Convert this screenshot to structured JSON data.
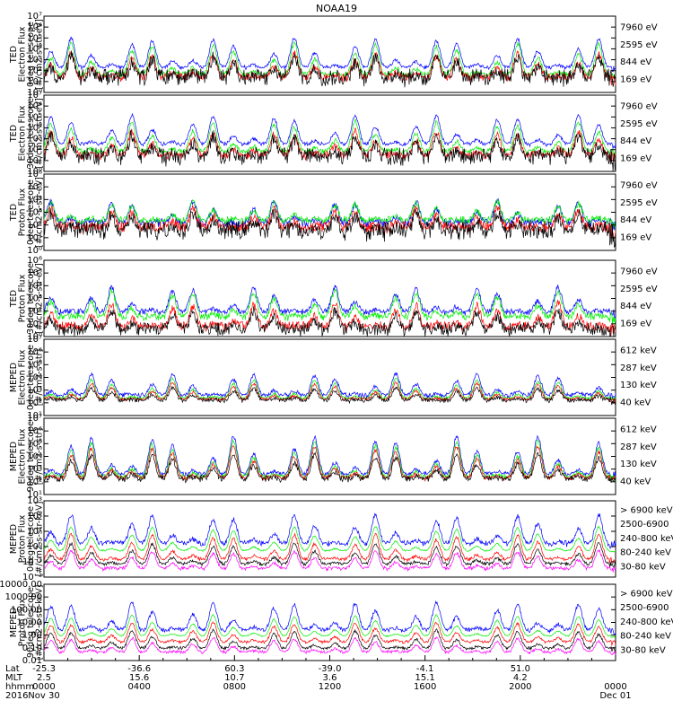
{
  "title": "NOAA19",
  "chart_data": {
    "type": "line",
    "title": "NOAA19",
    "x_axis": {
      "rows": [
        {
          "label": "Lat",
          "values": [
            "-25.3",
            "-36.6",
            "60.3",
            "-39.0",
            "-4.1",
            "51.0"
          ]
        },
        {
          "label": "MLT",
          "values": [
            "2.5",
            "15.6",
            "10.7",
            "3.6",
            "15.1",
            "4.2"
          ]
        },
        {
          "label": "hhmm",
          "values": [
            "0000",
            "0400",
            "0800",
            "1200",
            "1600",
            "2000"
          ]
        },
        {
          "label": "2016",
          "values": [
            "Nov 30",
            "",
            "",
            "",
            "",
            ""
          ]
        }
      ],
      "end_label": "Dec 01",
      "end_value": "0000"
    },
    "panels": [
      {
        "ylabel": [
          "TED",
          "Electron Flux",
          "0deg telescope",
          "[#/cm2-s-str-eV]"
        ],
        "yscale": "log",
        "ylim_exp": [
          0,
          7
        ],
        "tick_labels": [
          "10⁰",
          "10¹",
          "10²",
          "10³",
          "10⁴",
          "10⁵",
          "10⁶",
          "10⁷"
        ],
        "series": [
          {
            "name": "7960 eV",
            "color": "#000000",
            "base": 1.0,
            "peak": 3.3,
            "noise": 1.2
          },
          {
            "name": "2595 eV",
            "color": "#ff0000",
            "base": 1.2,
            "peak": 3.6,
            "noise": 0.6
          },
          {
            "name": "844 eV",
            "color": "#00ee00",
            "base": 1.5,
            "peak": 4.5,
            "noise": 0.4
          },
          {
            "name": "169 eV",
            "color": "#0000ff",
            "base": 2.2,
            "peak": 5.0,
            "noise": 0.3
          }
        ]
      },
      {
        "ylabel": [
          "TED",
          "Electron Flux",
          "30deg telescope",
          "[#/cm2-s-str-eV]"
        ],
        "yscale": "log",
        "ylim_exp": [
          0,
          7
        ],
        "tick_labels": [
          "10⁰",
          "10¹",
          "10²",
          "10³",
          "10⁴",
          "10⁵",
          "10⁶",
          "10⁷"
        ],
        "series": [
          {
            "name": "7960 eV",
            "color": "#000000",
            "base": 1.0,
            "peak": 3.3,
            "noise": 1.2
          },
          {
            "name": "2595 eV",
            "color": "#ff0000",
            "base": 1.3,
            "peak": 3.7,
            "noise": 0.6
          },
          {
            "name": "844 eV",
            "color": "#00ee00",
            "base": 1.7,
            "peak": 4.6,
            "noise": 0.4
          },
          {
            "name": "169 eV",
            "color": "#0000ff",
            "base": 2.4,
            "peak": 5.2,
            "noise": 0.3
          }
        ]
      },
      {
        "ylabel": [
          "TED",
          "Proton Flux",
          "0deg telescope",
          "[#/cm2-s-str-eV]"
        ],
        "yscale": "log",
        "ylim_exp": [
          0,
          6
        ],
        "tick_labels": [
          "10⁰",
          "10¹",
          "10²",
          "10³",
          "10⁴",
          "10⁵",
          "10⁶"
        ],
        "series": [
          {
            "name": "7960 eV",
            "color": "#000000",
            "base": 1.2,
            "peak": 3.0,
            "noise": 1.1
          },
          {
            "name": "2595 eV",
            "color": "#ff0000",
            "base": 1.6,
            "peak": 3.3,
            "noise": 0.7
          },
          {
            "name": "844 eV",
            "color": "#00ee00",
            "base": 2.2,
            "peak": 3.8,
            "noise": 0.5
          },
          {
            "name": "169 eV",
            "color": "#0000ff",
            "base": 2.0,
            "peak": 3.9,
            "noise": 0.5
          }
        ]
      },
      {
        "ylabel": [
          "TED",
          "Proton Flux",
          "30deg telescope",
          "[#/cm2-s-str-eV]"
        ],
        "yscale": "log",
        "ylim_exp": [
          0,
          6
        ],
        "tick_labels": [
          "10⁰",
          "10¹",
          "10²",
          "10³",
          "10⁴",
          "10⁵",
          "10⁶"
        ],
        "series": [
          {
            "name": "7960 eV",
            "color": "#000000",
            "base": 0.3,
            "peak": 2.0,
            "noise": 0.8
          },
          {
            "name": "2595 eV",
            "color": "#ff0000",
            "base": 0.6,
            "peak": 2.6,
            "noise": 0.6
          },
          {
            "name": "844 eV",
            "color": "#00ee00",
            "base": 1.4,
            "peak": 3.6,
            "noise": 0.5
          },
          {
            "name": "169 eV",
            "color": "#0000ff",
            "base": 1.8,
            "peak": 3.9,
            "noise": 0.4
          }
        ]
      },
      {
        "ylabel": [
          "MEPED",
          "Electron Flux",
          "0deg telescope",
          "[#/cm2-s-str]"
        ],
        "yscale": "log",
        "ylim_exp": [
          1,
          7
        ],
        "tick_labels": [
          "10¹",
          "10²",
          "10³",
          "10⁴",
          "10⁵",
          "10⁶",
          "10⁷"
        ],
        "series": [
          {
            "name": "612 keV",
            "color": "#000000",
            "base": 2.1,
            "peak": 3.2,
            "noise": 0.3
          },
          {
            "name": "287 keV",
            "color": "#ff0000",
            "base": 2.2,
            "peak": 3.6,
            "noise": 0.2
          },
          {
            "name": "130 keV",
            "color": "#00ee00",
            "base": 2.3,
            "peak": 3.9,
            "noise": 0.2
          },
          {
            "name": "40 keV",
            "color": "#0000ff",
            "base": 2.5,
            "peak": 4.3,
            "noise": 0.3
          }
        ]
      },
      {
        "ylabel": [
          "MEPED",
          "Electron Flux",
          "90deg telescope",
          "[#/cm2-s-str]"
        ],
        "yscale": "log",
        "ylim_exp": [
          1,
          7
        ],
        "tick_labels": [
          "10¹",
          "10²",
          "10³",
          "10⁴",
          "10⁵",
          "10⁶",
          "10⁷"
        ],
        "series": [
          {
            "name": "612 keV",
            "color": "#000000",
            "base": 2.1,
            "peak": 4.2,
            "noise": 0.4
          },
          {
            "name": "287 keV",
            "color": "#ff0000",
            "base": 2.2,
            "peak": 4.8,
            "noise": 0.3
          },
          {
            "name": "130 keV",
            "color": "#00ee00",
            "base": 2.3,
            "peak": 5.2,
            "noise": 0.3
          },
          {
            "name": "40 keV",
            "color": "#0000ff",
            "base": 2.5,
            "peak": 5.6,
            "noise": 0.3
          }
        ]
      },
      {
        "ylabel": [
          "MEPED",
          "Proton Flux",
          "0deg telescope",
          "[#/cm2-s-str-keV]"
        ],
        "yscale": "log",
        "ylim_exp": [
          -2,
          3
        ],
        "tick_labels": [
          "10⁻²",
          "10⁻¹",
          "10⁰",
          "10¹",
          "10²",
          "10³"
        ],
        "series": [
          {
            "name": "> 6900 keV",
            "color": "#ff00ff",
            "base": -1.5,
            "peak": -0.3,
            "noise": 0.2
          },
          {
            "name": "2500-6900",
            "color": "#000000",
            "base": -1.2,
            "peak": 0.2,
            "noise": 0.2
          },
          {
            "name": "240-800 keV",
            "color": "#ff0000",
            "base": -0.9,
            "peak": 0.8,
            "noise": 0.2
          },
          {
            "name": "80-240 keV",
            "color": "#00ee00",
            "base": -0.3,
            "peak": 1.3,
            "noise": 0.1
          },
          {
            "name": "30-80 keV",
            "color": "#0000ff",
            "base": 0.1,
            "peak": 2.1,
            "noise": 0.3
          }
        ]
      },
      {
        "ylabel": [
          "MEPED",
          "Proton Flux",
          "90deg telescope",
          "[#/cm2-s-str-keV]"
        ],
        "yscale": "log",
        "ylim_exp": [
          -2,
          4
        ],
        "tick_labels": [
          "0.01",
          "0.10",
          "1.00",
          "10.00",
          "100.00",
          "1000.00",
          "10000.00"
        ],
        "series": [
          {
            "name": "> 6900 keV",
            "color": "#ff00ff",
            "base": -1.4,
            "peak": -0.2,
            "noise": 0.2
          },
          {
            "name": "2500-6900",
            "color": "#000000",
            "base": -1.1,
            "peak": 0.4,
            "noise": 0.2
          },
          {
            "name": "240-800 keV",
            "color": "#ff0000",
            "base": -0.6,
            "peak": 1.0,
            "noise": 0.2
          },
          {
            "name": "80-240 keV",
            "color": "#00ee00",
            "base": -0.1,
            "peak": 1.6,
            "noise": 0.1
          },
          {
            "name": "30-80 keV",
            "color": "#0000ff",
            "base": 0.3,
            "peak": 2.6,
            "noise": 0.3
          }
        ]
      }
    ]
  }
}
